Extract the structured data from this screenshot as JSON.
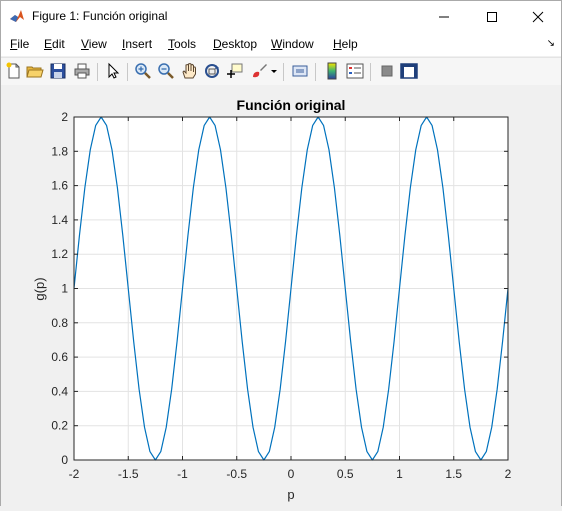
{
  "window": {
    "title": "Figure 1: Función original"
  },
  "menu": {
    "items": [
      "File",
      "Edit",
      "View",
      "Insert",
      "Tools",
      "Desktop",
      "Window",
      "Help"
    ]
  },
  "toolbar": {
    "icons": [
      "new-figure-icon",
      "open-file-icon",
      "save-icon",
      "print-icon",
      "pointer-icon",
      "zoom-in-icon",
      "zoom-out-icon",
      "pan-icon",
      "rotate-3d-icon",
      "data-cursor-icon",
      "brush-icon",
      "brush-dropdown-icon",
      "link-plot-icon",
      "insert-colorbar-icon",
      "insert-legend-icon",
      "hide-plot-tools-icon",
      "show-plot-tools-icon"
    ]
  },
  "colors": {
    "line": "#0072bd",
    "grid": "#e3e3e3",
    "axes_background": "#ffffff",
    "figure_background": "#f0f0f0"
  },
  "chart_data": {
    "type": "line",
    "title": "Función original",
    "xlabel": "p",
    "ylabel": "g(p)",
    "xlim": [
      -2,
      2
    ],
    "ylim": [
      0,
      2
    ],
    "xticks": [
      -2,
      -1.5,
      -1,
      -0.5,
      0,
      0.5,
      1,
      1.5,
      2
    ],
    "xtick_labels": [
      "-2",
      "-1.5",
      "-1",
      "-0.5",
      "0",
      "0.5",
      "1",
      "1.5",
      "2"
    ],
    "yticks": [
      0,
      0.2,
      0.4,
      0.6,
      0.8,
      1,
      1.2,
      1.4,
      1.6,
      1.8,
      2
    ],
    "ytick_labels": [
      "0",
      "0.2",
      "0.4",
      "0.6",
      "0.8",
      "1",
      "1.2",
      "1.4",
      "1.6",
      "1.8",
      "2"
    ],
    "grid": true,
    "series": [
      {
        "x": [
          -2,
          -1.95,
          -1.9,
          -1.85,
          -1.8,
          -1.75,
          -1.7,
          -1.65,
          -1.6,
          -1.55,
          -1.5,
          -1.45,
          -1.4,
          -1.35,
          -1.3,
          -1.25,
          -1.2,
          -1.15,
          -1.1,
          -1.05,
          -1,
          -0.95,
          -0.9,
          -0.85,
          -0.8,
          -0.75,
          -0.7,
          -0.65,
          -0.6,
          -0.55,
          -0.5,
          -0.45,
          -0.4,
          -0.35,
          -0.3,
          -0.25,
          -0.2,
          -0.15,
          -0.1,
          -0.05,
          0,
          0.05,
          0.1,
          0.15,
          0.2,
          0.25,
          0.3,
          0.35,
          0.4,
          0.45,
          0.5,
          0.55,
          0.6,
          0.65,
          0.7,
          0.75,
          0.8,
          0.85,
          0.9,
          0.95,
          1,
          1.05,
          1.1,
          1.15,
          1.2,
          1.25,
          1.3,
          1.35,
          1.4,
          1.45,
          1.5,
          1.55,
          1.6,
          1.65,
          1.7,
          1.75,
          1.8,
          1.85,
          1.9,
          1.95,
          2
        ],
        "y": [
          1,
          1.309,
          1.588,
          1.809,
          1.951,
          2,
          1.951,
          1.809,
          1.588,
          1.309,
          1,
          0.691,
          0.412,
          0.191,
          0.049,
          0,
          0.049,
          0.191,
          0.412,
          0.691,
          1,
          1.309,
          1.588,
          1.809,
          1.951,
          2,
          1.951,
          1.809,
          1.588,
          1.309,
          1,
          0.691,
          0.412,
          0.191,
          0.049,
          0,
          0.049,
          0.191,
          0.412,
          0.691,
          1,
          1.309,
          1.588,
          1.809,
          1.951,
          2,
          1.951,
          1.809,
          1.588,
          1.309,
          1,
          0.691,
          0.412,
          0.191,
          0.049,
          0,
          0.049,
          0.191,
          0.412,
          0.691,
          1,
          1.309,
          1.588,
          1.809,
          1.951,
          2,
          1.951,
          1.809,
          1.588,
          1.309,
          1,
          0.691,
          0.412,
          0.191,
          0.049,
          0,
          0.049,
          0.191,
          0.412,
          0.691,
          1
        ]
      }
    ]
  }
}
